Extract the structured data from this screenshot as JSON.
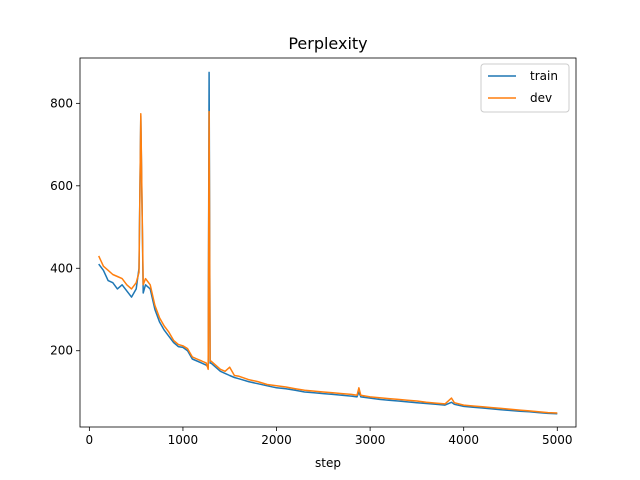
{
  "chart_data": {
    "type": "line",
    "title": "Perplexity",
    "xlabel": "step",
    "ylabel": "",
    "xlim": [
      -100,
      5200
    ],
    "ylim": [
      15,
      910
    ],
    "xticks": [
      0,
      1000,
      2000,
      3000,
      4000,
      5000
    ],
    "yticks": [
      200,
      400,
      600,
      800
    ],
    "grid": false,
    "legend_position": "top-right",
    "series": [
      {
        "name": "train",
        "color": "#1f77b4",
        "x": [
          100,
          150,
          200,
          250,
          300,
          350,
          400,
          450,
          500,
          530,
          550,
          575,
          600,
          650,
          700,
          750,
          800,
          850,
          900,
          950,
          1000,
          1050,
          1100,
          1150,
          1200,
          1250,
          1270,
          1280,
          1290,
          1300,
          1350,
          1400,
          1450,
          1500,
          1550,
          1600,
          1700,
          1800,
          1900,
          2000,
          2100,
          2200,
          2300,
          2400,
          2500,
          2600,
          2700,
          2800,
          2860,
          2880,
          2900,
          3000,
          3100,
          3200,
          3300,
          3400,
          3500,
          3600,
          3700,
          3800,
          3870,
          3900,
          4000,
          4100,
          4200,
          4300,
          4400,
          4500,
          4600,
          4700,
          4800,
          4900,
          5000
        ],
        "y": [
          410,
          395,
          370,
          365,
          350,
          360,
          345,
          330,
          350,
          400,
          770,
          340,
          360,
          350,
          300,
          270,
          250,
          235,
          220,
          210,
          208,
          200,
          180,
          175,
          170,
          165,
          160,
          875,
          170,
          170,
          160,
          150,
          145,
          140,
          135,
          132,
          125,
          120,
          115,
          110,
          108,
          104,
          100,
          98,
          96,
          94,
          92,
          90,
          88,
          100,
          88,
          85,
          82,
          80,
          78,
          76,
          74,
          72,
          70,
          68,
          75,
          70,
          65,
          63,
          61,
          59,
          57,
          55,
          53,
          52,
          50,
          48,
          47
        ]
      },
      {
        "name": "dev",
        "color": "#ff7f0e",
        "x": [
          100,
          150,
          200,
          250,
          300,
          350,
          400,
          450,
          500,
          530,
          550,
          575,
          600,
          650,
          700,
          750,
          800,
          850,
          900,
          950,
          1000,
          1050,
          1100,
          1150,
          1200,
          1250,
          1270,
          1280,
          1290,
          1300,
          1350,
          1400,
          1450,
          1500,
          1550,
          1600,
          1700,
          1800,
          1900,
          2000,
          2100,
          2200,
          2300,
          2400,
          2500,
          2600,
          2700,
          2800,
          2860,
          2880,
          2900,
          3000,
          3100,
          3200,
          3300,
          3400,
          3500,
          3600,
          3700,
          3800,
          3870,
          3900,
          4000,
          4100,
          4200,
          4300,
          4400,
          4500,
          4600,
          4700,
          4800,
          4900,
          5000
        ],
        "y": [
          430,
          405,
          395,
          385,
          380,
          375,
          360,
          350,
          365,
          390,
          775,
          360,
          375,
          360,
          310,
          280,
          260,
          245,
          225,
          215,
          212,
          205,
          185,
          180,
          175,
          170,
          155,
          780,
          175,
          175,
          165,
          155,
          150,
          160,
          140,
          138,
          130,
          125,
          118,
          115,
          112,
          108,
          104,
          102,
          100,
          98,
          96,
          94,
          92,
          110,
          92,
          88,
          86,
          84,
          82,
          80,
          78,
          75,
          73,
          71,
          85,
          74,
          68,
          66,
          64,
          62,
          60,
          58,
          56,
          54,
          52,
          50,
          49
        ]
      }
    ]
  }
}
